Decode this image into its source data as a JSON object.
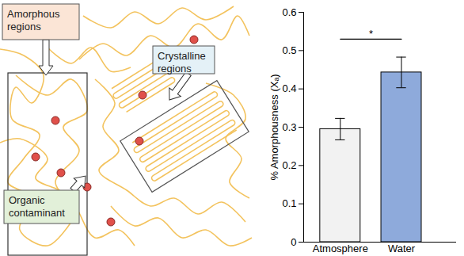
{
  "chart_data": {
    "type": "bar",
    "categories": [
      "Atmosphere",
      "Water"
    ],
    "values": [
      0.295,
      0.443
    ],
    "errors": [
      0.028,
      0.04
    ],
    "colors": [
      "#f2f2f2",
      "#8eaadb"
    ],
    "ylabel": "% Amorphousness (Xₐ)",
    "ylim": [
      0,
      0.6
    ],
    "yticks": [
      0,
      0.1,
      0.2,
      0.3,
      0.4,
      0.5,
      0.6
    ],
    "grid": false,
    "significance": {
      "between": [
        "Atmosphere",
        "Water"
      ],
      "y": 0.53,
      "label": "*"
    }
  },
  "diagram": {
    "labels": [
      "Amorphous regions",
      "Crystalline regions",
      "Organic contaminant"
    ]
  }
}
